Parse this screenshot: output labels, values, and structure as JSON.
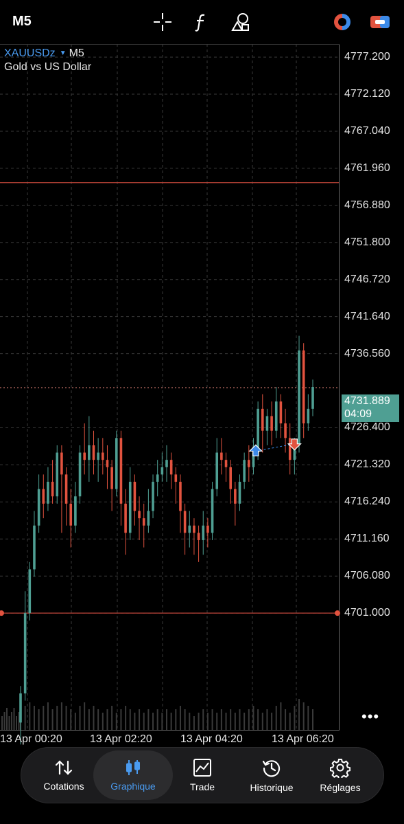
{
  "topbar": {
    "timeframe": "M5",
    "icons": [
      "crosshair-icon",
      "function-icon",
      "objects-icon",
      "one-click-trading-icon",
      "account-toggle-icon"
    ]
  },
  "chart": {
    "symbol": "XAUUSDz",
    "symbol_timeframe": "M5",
    "description": "Gold vs US Dollar",
    "current_price": "4731.889",
    "countdown": "04:09",
    "more_label": "•••"
  },
  "chart_data": {
    "type": "candlestick",
    "y_ticks": [
      "4777.200",
      "4772.120",
      "4767.040",
      "4761.960",
      "4756.880",
      "4751.800",
      "4746.720",
      "4741.640",
      "4736.560",
      "4731.889",
      "4726.400",
      "4721.320",
      "4716.240",
      "4711.160",
      "4706.080",
      "4701.000"
    ],
    "x_ticks": [
      "13 Apr 00:20",
      "13 Apr 02:20",
      "13 Apr 04:20",
      "13 Apr 06:20"
    ],
    "ylim": [
      4685.0,
      4779.0
    ],
    "levels": [
      {
        "price": 4760.0,
        "color": "#c0463a",
        "style": "solid"
      },
      {
        "price": 4731.889,
        "color": "#e8857a",
        "style": "dotted"
      },
      {
        "price": 4701.0,
        "color": "#c0463a",
        "style": "solid"
      }
    ],
    "trades": [
      {
        "type": "buy",
        "price": 4723.2,
        "color": "#3c8ae8"
      },
      {
        "type": "sell",
        "price": 4724.2,
        "color": "#e2533f"
      }
    ],
    "grid": true,
    "bull_color": "#4f9f93",
    "bear_color": "#e2533f",
    "candles": [
      [
        4686,
        4690,
        4683,
        4691
      ],
      [
        4690,
        4701,
        4689,
        4704
      ],
      [
        4701,
        4707,
        4700,
        4708
      ],
      [
        4707,
        4713,
        4706,
        4715
      ],
      [
        4713,
        4718,
        4712,
        4720
      ],
      [
        4718,
        4716,
        4714,
        4720
      ],
      [
        4716,
        4719,
        4715,
        4721
      ],
      [
        4719,
        4717,
        4716,
        4722
      ],
      [
        4717,
        4723,
        4716,
        4724
      ],
      [
        4723,
        4720,
        4712,
        4724
      ],
      [
        4720,
        4716,
        4713,
        4721
      ],
      [
        4716,
        4713,
        4710,
        4718
      ],
      [
        4713,
        4717,
        4712,
        4719
      ],
      [
        4717,
        4723,
        4716,
        4724
      ],
      [
        4723,
        4722,
        4720,
        4727
      ],
      [
        4722,
        4724,
        4719,
        4728
      ],
      [
        4724,
        4722,
        4720,
        4726
      ],
      [
        4722,
        4723,
        4719,
        4725
      ],
      [
        4723,
        4722,
        4720,
        4725
      ],
      [
        4722,
        4721,
        4718,
        4724
      ],
      [
        4721,
        4718,
        4715,
        4722
      ],
      [
        4718,
        4725,
        4717,
        4726
      ],
      [
        4725,
        4716,
        4713,
        4726
      ],
      [
        4716,
        4712,
        4709,
        4718
      ],
      [
        4712,
        4719,
        4711,
        4721
      ],
      [
        4719,
        4715,
        4713,
        4720
      ],
      [
        4715,
        4714,
        4711,
        4717
      ],
      [
        4714,
        4713,
        4710,
        4716
      ],
      [
        4713,
        4715,
        4712,
        4718
      ],
      [
        4715,
        4719,
        4714,
        4720
      ],
      [
        4719,
        4720,
        4717,
        4722
      ],
      [
        4720,
        4721,
        4719,
        4723
      ],
      [
        4721,
        4722,
        4719,
        4724
      ],
      [
        4722,
        4720,
        4718,
        4723
      ],
      [
        4720,
        4719,
        4716,
        4721
      ],
      [
        4719,
        4715,
        4712,
        4720
      ],
      [
        4715,
        4712,
        4709,
        4716
      ],
      [
        4712,
        4713,
        4710,
        4715
      ],
      [
        4713,
        4712,
        4709,
        4714
      ],
      [
        4712,
        4711,
        4708,
        4713
      ],
      [
        4711,
        4713,
        4709,
        4715
      ],
      [
        4713,
        4712,
        4710,
        4714
      ],
      [
        4712,
        4718,
        4711,
        4719
      ],
      [
        4718,
        4723,
        4717,
        4725
      ],
      [
        4723,
        4722,
        4720,
        4725
      ],
      [
        4722,
        4721,
        4719,
        4723
      ],
      [
        4721,
        4718,
        4716,
        4722
      ],
      [
        4718,
        4716,
        4713,
        4719
      ],
      [
        4716,
        4719,
        4715,
        4720
      ],
      [
        4719,
        4722,
        4718,
        4723
      ],
      [
        4722,
        4721,
        4719,
        4724
      ],
      [
        4721,
        4723,
        4720,
        4725
      ],
      [
        4723,
        4729,
        4722,
        4730
      ],
      [
        4729,
        4726,
        4723,
        4731
      ],
      [
        4726,
        4728,
        4724,
        4729
      ],
      [
        4728,
        4726,
        4724,
        4730
      ],
      [
        4726,
        4730,
        4725,
        4732
      ],
      [
        4730,
        4727,
        4725,
        4731
      ],
      [
        4727,
        4725,
        4723,
        4729
      ],
      [
        4725,
        4722,
        4720,
        4727
      ],
      [
        4722,
        4724,
        4720,
        4725
      ],
      [
        4724,
        4737,
        4723,
        4739
      ],
      [
        4737,
        4727,
        4725,
        4738
      ],
      [
        4727,
        4729,
        4726,
        4731
      ],
      [
        4729,
        4732,
        4728,
        4733
      ]
    ],
    "volumes": [
      6,
      7,
      8,
      7,
      6,
      7,
      8,
      6,
      7,
      8,
      7,
      6,
      5,
      7,
      8,
      6,
      7,
      6,
      5,
      6,
      7,
      5,
      6,
      7,
      6,
      5,
      6,
      5,
      6,
      5,
      6,
      5,
      6,
      5,
      6,
      7,
      6,
      5,
      4,
      5,
      6,
      5,
      6,
      5,
      6,
      5,
      6,
      5,
      6,
      5,
      6,
      7,
      6,
      5,
      6,
      5,
      7,
      8,
      6,
      5,
      7,
      9,
      8,
      7,
      6
    ]
  },
  "navbar": {
    "items": [
      {
        "label": "Cotations",
        "icon": "quotes-icon"
      },
      {
        "label": "Graphique",
        "icon": "chart-icon"
      },
      {
        "label": "Trade",
        "icon": "trade-icon"
      },
      {
        "label": "Historique",
        "icon": "history-icon"
      },
      {
        "label": "Réglages",
        "icon": "settings-icon"
      }
    ],
    "active": "Graphique"
  }
}
